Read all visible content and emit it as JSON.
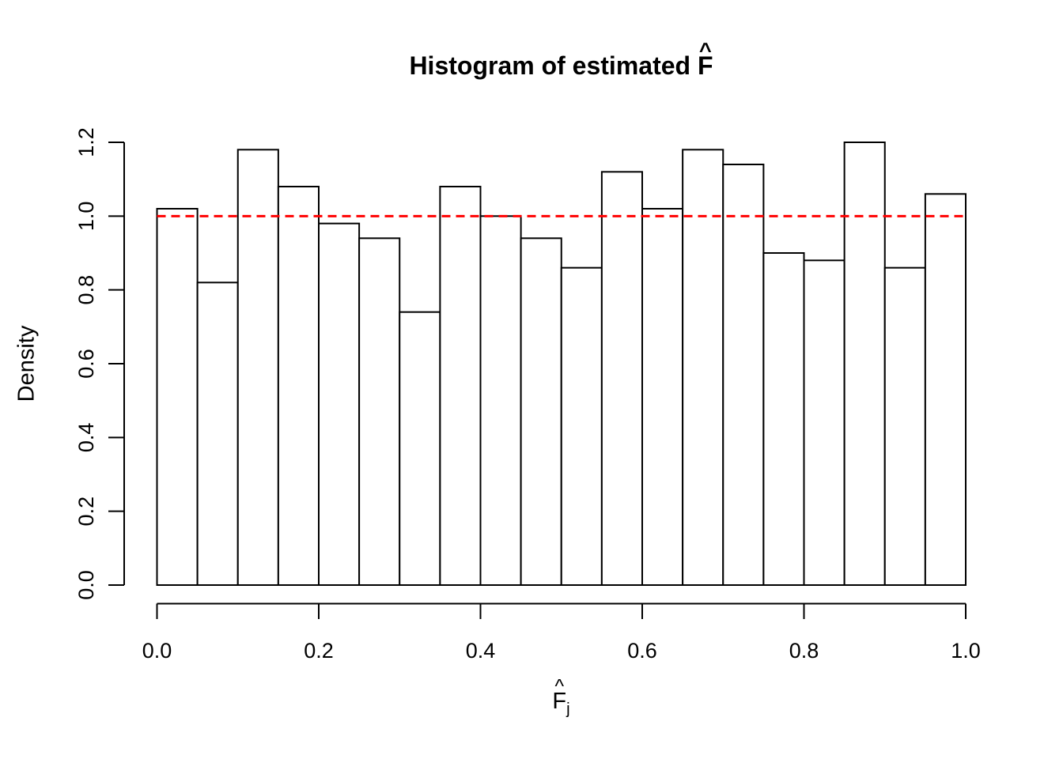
{
  "title": {
    "prefix": "Histogram of estimated",
    "variable": "F",
    "hat": "^"
  },
  "y_axis": {
    "label": "Density",
    "ticks": [
      {
        "value": 0.0,
        "label": "0.0"
      },
      {
        "value": 0.2,
        "label": "0.2"
      },
      {
        "value": 0.4,
        "label": "0.4"
      },
      {
        "value": 0.6,
        "label": "0.6"
      },
      {
        "value": 0.8,
        "label": "0.8"
      },
      {
        "value": 1.0,
        "label": "1.0"
      },
      {
        "value": 1.2,
        "label": "1.2"
      }
    ]
  },
  "x_axis": {
    "label": {
      "variable": "F",
      "hat": "^",
      "subscript": "j"
    },
    "ticks": [
      {
        "value": 0.0,
        "label": "0.0"
      },
      {
        "value": 0.2,
        "label": "0.2"
      },
      {
        "value": 0.4,
        "label": "0.4"
      },
      {
        "value": 0.6,
        "label": "0.6"
      },
      {
        "value": 0.8,
        "label": "0.8"
      },
      {
        "value": 1.0,
        "label": "1.0"
      }
    ]
  },
  "colors": {
    "background": "#ffffff",
    "line": "#000000",
    "bar_fill": "#ffffff",
    "bar_stroke": "#000000",
    "reference": "#ff0000"
  },
  "chart_data": {
    "type": "bar",
    "subtype": "histogram",
    "title": "Histogram of estimated F̂",
    "xlabel": "F̂_j",
    "ylabel": "Density",
    "xlim": [
      0.0,
      1.0
    ],
    "ylim": [
      0.0,
      1.2
    ],
    "grid": false,
    "legend": "none",
    "bins": {
      "start": 0.0,
      "end": 1.0,
      "width": 0.05,
      "count": 20
    },
    "values": [
      1.02,
      0.82,
      1.18,
      1.08,
      0.98,
      0.94,
      0.74,
      1.08,
      1.0,
      0.94,
      0.86,
      1.12,
      1.02,
      1.18,
      1.14,
      0.9,
      0.88,
      1.2,
      0.86,
      1.06
    ],
    "x_ticks": [
      0.0,
      0.2,
      0.4,
      0.6,
      0.8,
      1.0
    ],
    "y_ticks": [
      0.0,
      0.2,
      0.4,
      0.6,
      0.8,
      1.0,
      1.2
    ],
    "reference_line": {
      "y": 1.0,
      "color": "#ff0000",
      "style": "dashed"
    }
  }
}
